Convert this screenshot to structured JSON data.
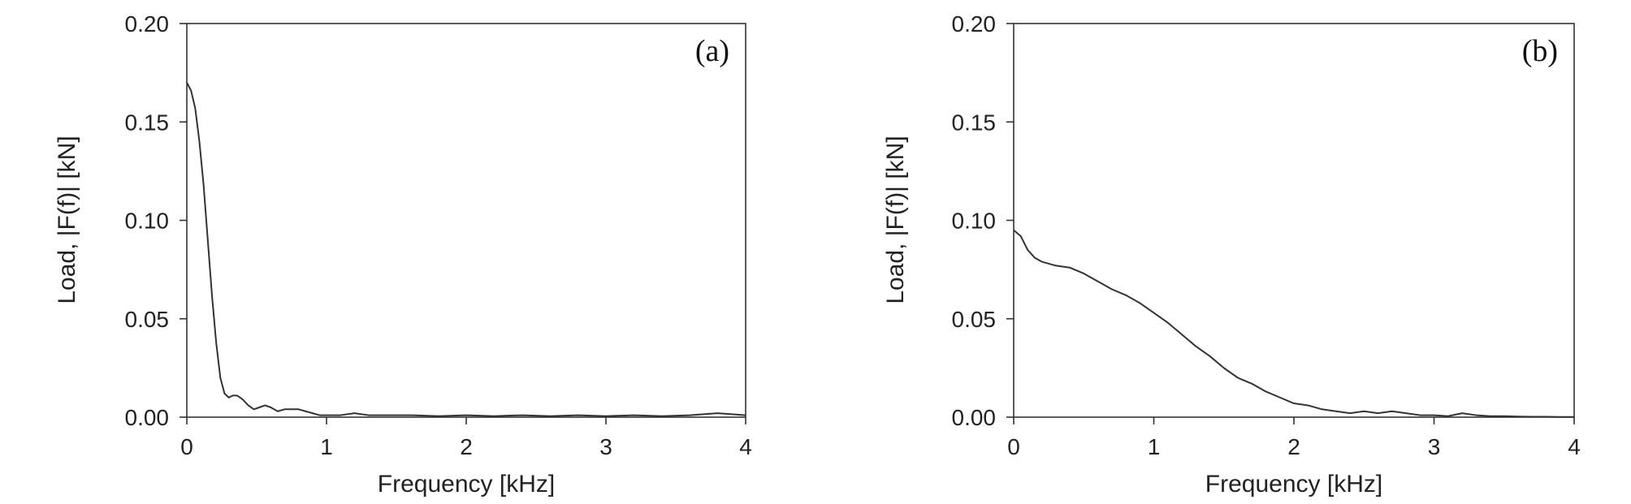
{
  "chart_data": [
    {
      "type": "line",
      "panel_label": "(a)",
      "xlabel": "Frequency [kHz]",
      "ylabel": "Load, |F(f)| [kN]",
      "xlim": [
        0,
        4
      ],
      "ylim": [
        0,
        0.2
      ],
      "x_ticks": [
        "0",
        "1",
        "2",
        "3",
        "4"
      ],
      "y_ticks": [
        "0.00",
        "0.05",
        "0.10",
        "0.15",
        "0.20"
      ],
      "grid": false,
      "series": [
        {
          "x": [
            0,
            0.03,
            0.06,
            0.09,
            0.12,
            0.15,
            0.18,
            0.21,
            0.24,
            0.27,
            0.3,
            0.33,
            0.36,
            0.4,
            0.44,
            0.48,
            0.52,
            0.56,
            0.6,
            0.65,
            0.7,
            0.75,
            0.8,
            0.85,
            0.9,
            0.95,
            1.0,
            1.1,
            1.2,
            1.3,
            1.4,
            1.6,
            1.8,
            2.0,
            2.2,
            2.4,
            2.6,
            2.8,
            3.0,
            3.2,
            3.4,
            3.6,
            3.7,
            3.8,
            3.9,
            4.0
          ],
          "y": [
            0.17,
            0.166,
            0.157,
            0.14,
            0.118,
            0.09,
            0.062,
            0.038,
            0.02,
            0.012,
            0.01,
            0.011,
            0.011,
            0.009,
            0.006,
            0.004,
            0.005,
            0.006,
            0.005,
            0.003,
            0.004,
            0.004,
            0.004,
            0.003,
            0.002,
            0.001,
            0.001,
            0.001,
            0.002,
            0.001,
            0.001,
            0.001,
            0.0005,
            0.001,
            0.0005,
            0.001,
            0.0005,
            0.001,
            0.0005,
            0.001,
            0.0005,
            0.001,
            0.0015,
            0.002,
            0.0015,
            0.001
          ]
        }
      ]
    },
    {
      "type": "line",
      "panel_label": "(b)",
      "xlabel": "Frequency [kHz]",
      "ylabel": "Load, |F(f)| [kN]",
      "xlim": [
        0,
        4
      ],
      "ylim": [
        0,
        0.2
      ],
      "x_ticks": [
        "0",
        "1",
        "2",
        "3",
        "4"
      ],
      "y_ticks": [
        "0.00",
        "0.05",
        "0.10",
        "0.15",
        "0.20"
      ],
      "grid": false,
      "series": [
        {
          "x": [
            0,
            0.05,
            0.1,
            0.15,
            0.2,
            0.3,
            0.4,
            0.5,
            0.6,
            0.7,
            0.8,
            0.9,
            1.0,
            1.1,
            1.2,
            1.3,
            1.4,
            1.5,
            1.6,
            1.7,
            1.8,
            1.9,
            2.0,
            2.1,
            2.2,
            2.3,
            2.4,
            2.5,
            2.6,
            2.7,
            2.8,
            2.9,
            3.0,
            3.1,
            3.2,
            3.3,
            3.4,
            3.5,
            3.6,
            3.7,
            3.8,
            3.9,
            4.0
          ],
          "y": [
            0.095,
            0.092,
            0.085,
            0.081,
            0.079,
            0.077,
            0.076,
            0.073,
            0.069,
            0.065,
            0.062,
            0.058,
            0.053,
            0.048,
            0.042,
            0.036,
            0.031,
            0.025,
            0.02,
            0.017,
            0.013,
            0.01,
            0.007,
            0.006,
            0.004,
            0.003,
            0.002,
            0.003,
            0.002,
            0.003,
            0.002,
            0.001,
            0.001,
            0.0005,
            0.002,
            0.001,
            0.0005,
            0.0005,
            0.0003,
            0.0002,
            0.0002,
            0.0001,
            0.0001
          ]
        }
      ]
    }
  ]
}
